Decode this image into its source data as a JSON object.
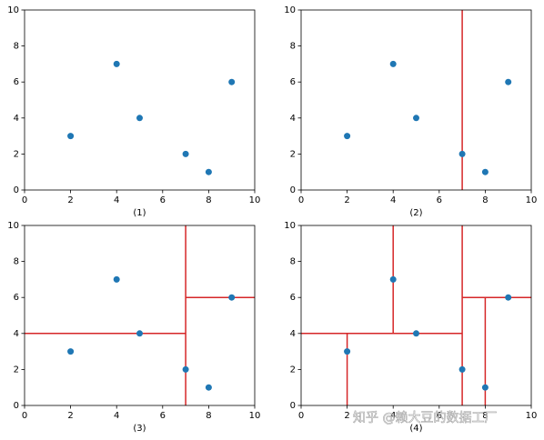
{
  "chart_data": [
    {
      "type": "scatter",
      "xlabel": "(1)",
      "x": [
        2,
        4,
        5,
        7,
        8,
        9
      ],
      "y": [
        3,
        7,
        4,
        2,
        1,
        6
      ],
      "color": "#1f77b4",
      "xlim": [
        0,
        10
      ],
      "ylim": [
        0,
        10
      ],
      "xticks": [
        0,
        2,
        4,
        6,
        8,
        10
      ],
      "yticks": [
        0,
        2,
        4,
        6,
        8,
        10
      ],
      "line_color": "#d62728",
      "segments": []
    },
    {
      "type": "scatter",
      "xlabel": "(2)",
      "x": [
        2,
        4,
        5,
        7,
        8,
        9
      ],
      "y": [
        3,
        7,
        4,
        2,
        1,
        6
      ],
      "color": "#1f77b4",
      "xlim": [
        0,
        10
      ],
      "ylim": [
        0,
        10
      ],
      "xticks": [
        0,
        2,
        4,
        6,
        8,
        10
      ],
      "yticks": [
        0,
        2,
        4,
        6,
        8,
        10
      ],
      "line_color": "#d62728",
      "segments": [
        {
          "x": [
            7,
            7
          ],
          "y": [
            0,
            10
          ]
        }
      ]
    },
    {
      "type": "scatter",
      "xlabel": "(3)",
      "x": [
        2,
        4,
        5,
        7,
        8,
        9
      ],
      "y": [
        3,
        7,
        4,
        2,
        1,
        6
      ],
      "color": "#1f77b4",
      "xlim": [
        0,
        10
      ],
      "ylim": [
        0,
        10
      ],
      "xticks": [
        0,
        2,
        4,
        6,
        8,
        10
      ],
      "yticks": [
        0,
        2,
        4,
        6,
        8,
        10
      ],
      "line_color": "#d62728",
      "segments": [
        {
          "x": [
            7,
            7
          ],
          "y": [
            0,
            10
          ]
        },
        {
          "x": [
            0,
            7
          ],
          "y": [
            4,
            4
          ]
        },
        {
          "x": [
            7,
            10
          ],
          "y": [
            6,
            6
          ]
        }
      ]
    },
    {
      "type": "scatter",
      "xlabel": "(4)",
      "x": [
        2,
        4,
        5,
        7,
        8,
        9
      ],
      "y": [
        3,
        7,
        4,
        2,
        1,
        6
      ],
      "color": "#1f77b4",
      "xlim": [
        0,
        10
      ],
      "ylim": [
        0,
        10
      ],
      "xticks": [
        0,
        2,
        4,
        6,
        8,
        10
      ],
      "yticks": [
        0,
        2,
        4,
        6,
        8,
        10
      ],
      "line_color": "#d62728",
      "segments": [
        {
          "x": [
            7,
            7
          ],
          "y": [
            0,
            10
          ]
        },
        {
          "x": [
            0,
            7
          ],
          "y": [
            4,
            4
          ]
        },
        {
          "x": [
            7,
            10
          ],
          "y": [
            6,
            6
          ]
        },
        {
          "x": [
            2,
            2
          ],
          "y": [
            0,
            4
          ]
        },
        {
          "x": [
            4,
            4
          ],
          "y": [
            4,
            10
          ]
        },
        {
          "x": [
            8,
            8
          ],
          "y": [
            0,
            6
          ]
        }
      ]
    }
  ],
  "watermark": "知乎 @赖大豆的数据工厂"
}
